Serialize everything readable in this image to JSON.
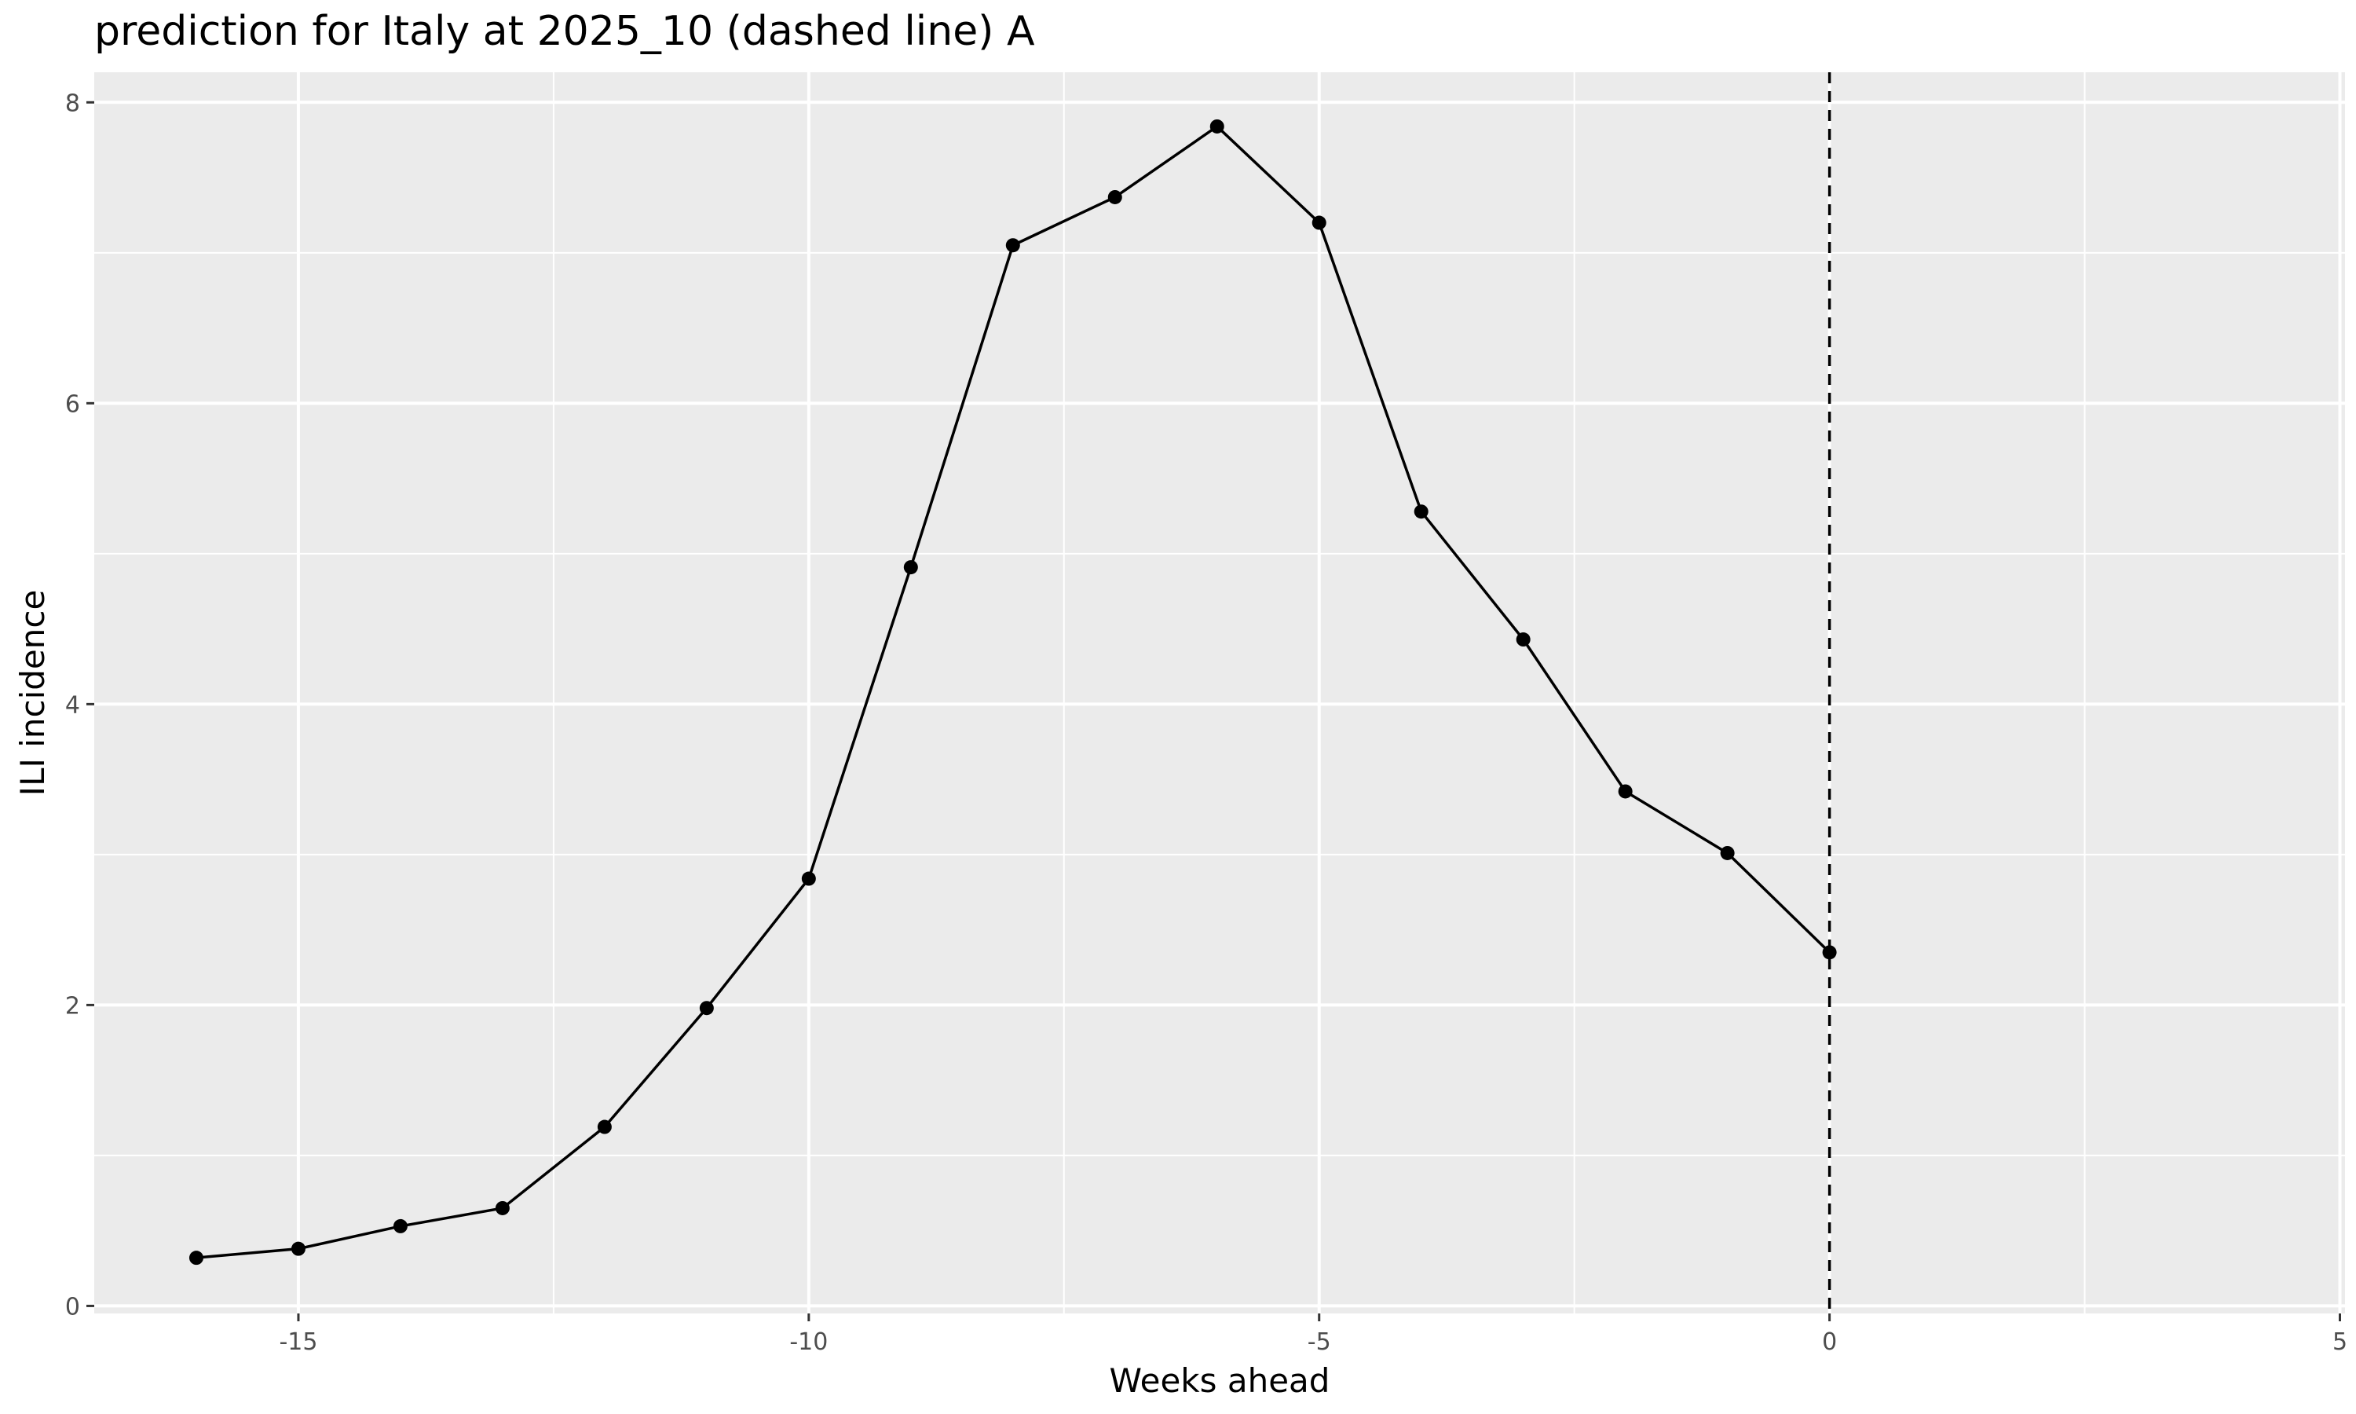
{
  "chart_data": {
    "type": "line",
    "title": "prediction for Italy at 2025_10 (dashed line) A",
    "xlabel": "Weeks ahead",
    "ylabel": "ILI incidence",
    "xlim": [
      -17,
      5.05
    ],
    "ylim": [
      -0.05,
      8.2
    ],
    "x_ticks": [
      -15,
      -10,
      -5,
      0,
      5
    ],
    "y_ticks": [
      0,
      2,
      4,
      6,
      8
    ],
    "grid": true,
    "background": "#ebebeb",
    "grid_color": "#ffffff",
    "line_color": "#000000",
    "reference_line": {
      "x": 0,
      "style": "dashed"
    },
    "series": [
      {
        "x": [
          -16,
          -15,
          -14,
          -13,
          -12,
          -11,
          -10,
          -9,
          -8,
          -7,
          -6,
          -5,
          -4,
          -3,
          -2,
          -1,
          0
        ],
        "y": [
          0.32,
          0.38,
          0.53,
          0.65,
          1.19,
          1.98,
          2.84,
          4.91,
          7.05,
          7.37,
          7.84,
          7.2,
          5.28,
          4.43,
          3.42,
          3.01,
          2.35
        ]
      }
    ]
  }
}
